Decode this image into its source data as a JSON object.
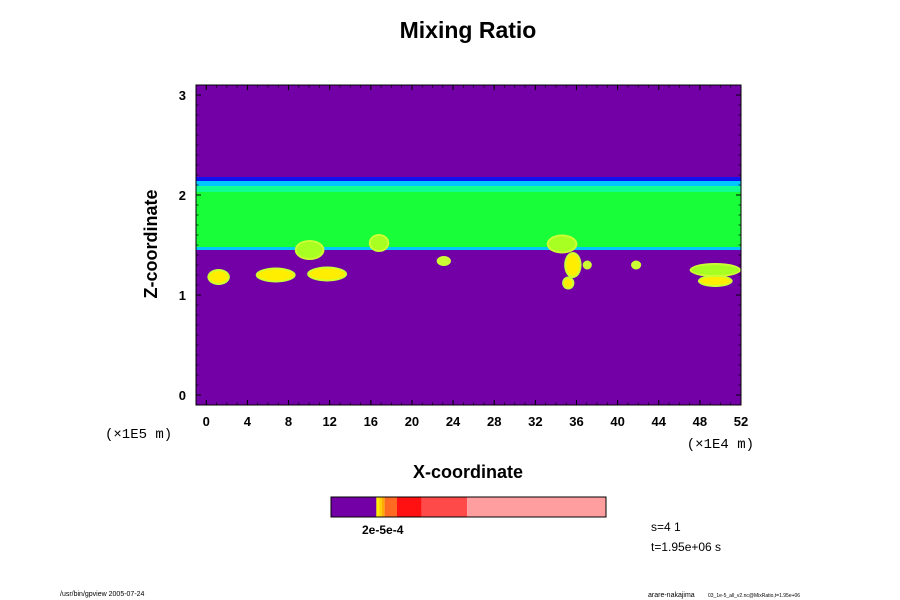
{
  "chart_data": {
    "type": "heatmap",
    "title": "Mixing Ratio",
    "xlabel": "X-coordinate",
    "ylabel": "Z-coordinate",
    "x_unit": "(×1E4 m)",
    "y_unit": "(×1E5 m)",
    "xlim": [
      -1,
      52
    ],
    "ylim": [
      -0.1,
      3.1
    ],
    "x_ticks": [
      0,
      4,
      8,
      12,
      16,
      20,
      24,
      28,
      32,
      36,
      40,
      44,
      48,
      52
    ],
    "y_ticks": [
      0,
      1,
      2,
      3
    ],
    "grid": false,
    "colors": {
      "background": "#7200a6",
      "layer": "#18ff3a",
      "layer_edge_top": "#1010f0",
      "layer_edge_mid": "#00c8ff",
      "layer_light": "#a8ff22",
      "cloud_yellow": "#ffee00",
      "cloud_light": "#ccff33"
    },
    "layer": {
      "z_bottom": 1.46,
      "z_top": 2.16
    },
    "blobs": [
      {
        "x": 0.3,
        "z": 1.18,
        "w": 1.8,
        "h": 0.12,
        "color": "#ffee00"
      },
      {
        "x": 5.0,
        "z": 1.2,
        "w": 3.5,
        "h": 0.11,
        "color": "#ffee00"
      },
      {
        "x": 8.8,
        "z": 1.45,
        "w": 2.5,
        "h": 0.16,
        "color": "#a8ff22"
      },
      {
        "x": 10.0,
        "z": 1.21,
        "w": 3.5,
        "h": 0.11,
        "color": "#ffee00"
      },
      {
        "x": 16.0,
        "z": 1.52,
        "w": 1.6,
        "h": 0.14,
        "color": "#a8ff22"
      },
      {
        "x": 22.6,
        "z": 1.34,
        "w": 1.0,
        "h": 0.06,
        "color": "#ccff33"
      },
      {
        "x": 33.3,
        "z": 1.51,
        "w": 2.6,
        "h": 0.15,
        "color": "#a8ff22"
      },
      {
        "x": 35.0,
        "z": 1.3,
        "w": 1.3,
        "h": 0.22,
        "color": "#ffee00"
      },
      {
        "x": 34.8,
        "z": 1.12,
        "w": 0.8,
        "h": 0.09,
        "color": "#ffee00"
      },
      {
        "x": 36.8,
        "z": 1.3,
        "w": 0.5,
        "h": 0.05,
        "color": "#ccff33"
      },
      {
        "x": 41.5,
        "z": 1.3,
        "w": 0.6,
        "h": 0.05,
        "color": "#ccff33"
      },
      {
        "x": 47.2,
        "z": 1.25,
        "w": 4.6,
        "h": 0.1,
        "color": "#a8ff22"
      },
      {
        "x": 48.0,
        "z": 1.14,
        "w": 3.0,
        "h": 0.08,
        "color": "#ffee00"
      }
    ]
  },
  "colorbar": {
    "label": "2e-5e-4",
    "segments": [
      {
        "to": 0.165,
        "color": "#7200a6"
      },
      {
        "to": 0.175,
        "color": "#ffee00"
      },
      {
        "to": 0.185,
        "color": "#ffcc00"
      },
      {
        "to": 0.195,
        "color": "#ffaa00"
      },
      {
        "to": 0.24,
        "color": "#ff6a22"
      },
      {
        "to": 0.33,
        "color": "#ff1111"
      },
      {
        "to": 0.495,
        "color": "#ff4a4a"
      },
      {
        "to": 1.0,
        "color": "#ff9e9e"
      }
    ]
  },
  "info": {
    "s_value": "s=4 1",
    "t_value": "t=1.95e+06 s"
  },
  "footer": {
    "left": "/usr/bin/gpview 2005-07-24",
    "right_main": "arare-nakajima",
    "right_file": "03_1e-5_all_v2.nc@MixRatio,t=1.95e+06"
  }
}
